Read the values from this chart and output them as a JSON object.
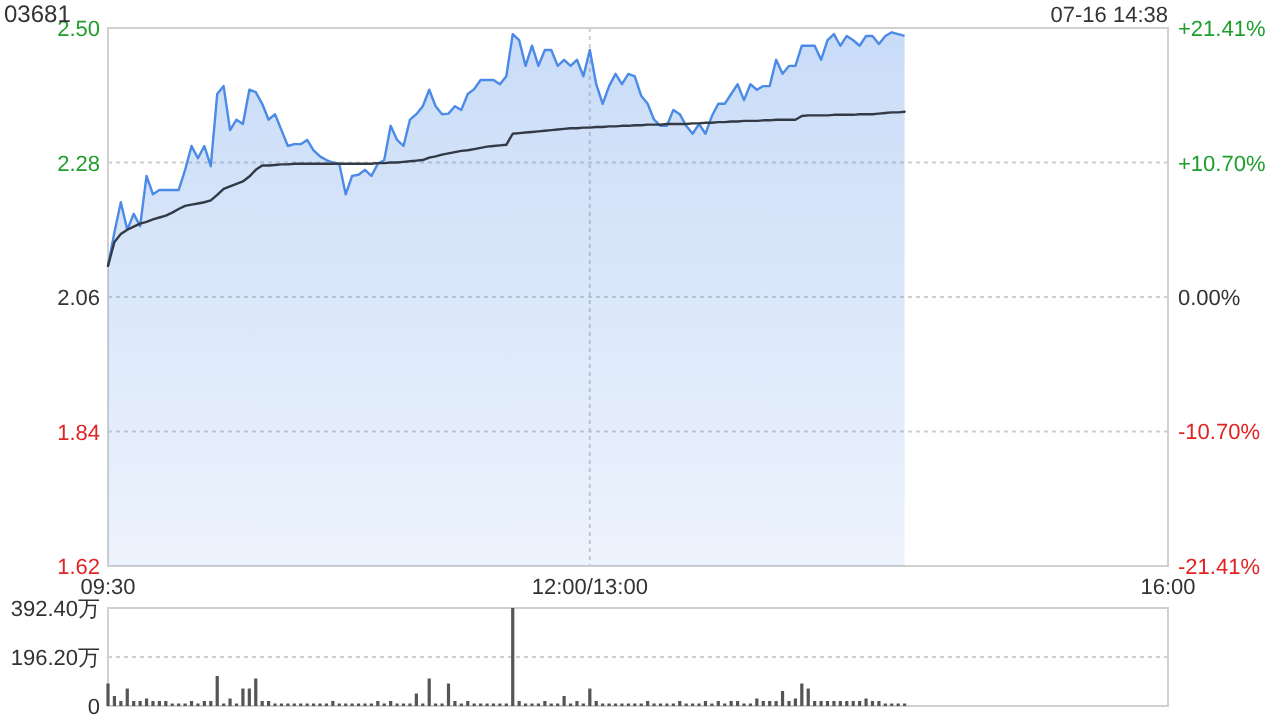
{
  "chart_data": [
    {
      "type": "area",
      "title": "03681",
      "annotations": [
        "07-16 14:38"
      ],
      "categories": [
        "09:30",
        null,
        null,
        null,
        null,
        null,
        null,
        null,
        null,
        null,
        null,
        null,
        null,
        null,
        null,
        null,
        null,
        null,
        null,
        null,
        null,
        null,
        null,
        null,
        null,
        null,
        null,
        null,
        null,
        null,
        null,
        null,
        null,
        null,
        null,
        null,
        null,
        null,
        null,
        null,
        null,
        null,
        null,
        null,
        null,
        null,
        null,
        null,
        null,
        null,
        null,
        null,
        null,
        null,
        null,
        null,
        null,
        null,
        null,
        null,
        null,
        null,
        null,
        null,
        null,
        null,
        null,
        null,
        null,
        null,
        null,
        null,
        null,
        null,
        null,
        "12:00/13:00",
        null,
        null,
        null,
        null,
        null,
        null,
        null,
        null,
        null,
        null,
        null,
        null,
        null,
        null,
        null,
        null,
        null,
        null,
        null,
        null,
        null,
        null,
        null,
        null,
        null,
        null,
        null,
        null,
        null,
        null,
        null,
        null,
        null,
        null,
        null,
        null,
        null,
        null,
        null,
        null,
        null,
        null,
        null,
        null,
        null,
        null,
        null,
        null,
        null,
        null,
        null,
        null,
        null,
        null,
        null,
        null,
        null,
        null,
        null,
        null,
        null,
        null,
        null,
        null,
        null,
        null,
        null,
        null,
        null,
        null,
        null,
        null,
        null,
        null,
        null,
        null,
        null,
        null,
        null,
        null,
        null,
        null,
        null,
        null,
        null,
        null,
        null,
        null,
        null,
        "16:00"
      ],
      "ylim": [
        1.62,
        2.5
      ],
      "yticks": [
        {
          "value": 2.5,
          "label": "2.50"
        },
        2.28,
        2.06,
        1.84,
        1.62
      ],
      "y2lim": [
        -21.41,
        21.41
      ],
      "y2ticks": [
        {
          "value": 21.41,
          "label": "+21.41%"
        },
        {
          "value": 10.7,
          "label": "+10.70%"
        },
        {
          "value": 0,
          "label": "0.00%"
        },
        {
          "value": -10.7,
          "label": "-10.70%"
        },
        {
          "value": -21.41,
          "label": "-21.41%"
        }
      ],
      "grid": true,
      "series": [
        {
          "color": "#4b8ae6",
          "values": [
            2.111,
            2.166,
            2.215,
            2.17,
            2.196,
            2.176,
            2.258,
            2.228,
            2.235,
            2.235,
            2.235,
            2.235,
            2.268,
            2.307,
            2.287,
            2.307,
            2.274,
            2.392,
            2.405,
            2.333,
            2.35,
            2.343,
            2.399,
            2.395,
            2.376,
            2.35,
            2.359,
            2.333,
            2.307,
            2.31,
            2.31,
            2.317,
            2.3,
            2.29,
            2.284,
            2.28,
            2.278,
            2.228,
            2.258,
            2.26,
            2.268,
            2.258,
            2.278,
            2.284,
            2.34,
            2.317,
            2.307,
            2.35,
            2.359,
            2.372,
            2.399,
            2.372,
            2.359,
            2.36,
            2.372,
            2.366,
            2.392,
            2.4,
            2.415,
            2.415,
            2.415,
            2.408,
            2.421,
            2.49,
            2.48,
            2.438,
            2.471,
            2.438,
            2.464,
            2.464,
            2.438,
            2.448,
            2.438,
            2.448,
            2.421,
            2.464,
            2.408,
            2.376,
            2.405,
            2.425,
            2.408,
            2.425,
            2.421,
            2.389,
            2.376,
            2.35,
            2.34,
            2.34,
            2.366,
            2.359,
            2.34,
            2.327,
            2.343,
            2.327,
            2.356,
            2.376,
            2.376,
            2.392,
            2.408,
            2.382,
            2.408,
            2.399,
            2.405,
            2.405,
            2.448,
            2.425,
            2.438,
            2.438,
            2.471,
            2.471,
            2.471,
            2.448,
            2.48,
            2.49,
            2.471,
            2.487,
            2.48,
            2.471,
            2.487,
            2.487,
            2.474,
            2.487,
            2.493,
            2.49,
            2.487,
            null,
            null,
            null,
            null,
            null,
            null,
            null,
            null,
            null,
            null,
            null,
            null,
            null,
            null,
            null,
            null,
            null,
            null,
            null,
            null,
            null,
            null,
            null,
            null,
            null,
            null,
            null,
            null,
            null,
            null,
            null,
            null,
            null,
            null,
            null,
            null,
            null,
            null,
            null,
            null,
            null
          ]
        },
        {
          "type": "line",
          "color": "#333a45",
          "values": [
            2.111,
            2.15,
            2.163,
            2.17,
            2.175,
            2.18,
            2.183,
            2.187,
            2.19,
            2.193,
            2.198,
            2.204,
            2.209,
            2.211,
            2.213,
            2.215,
            2.218,
            2.227,
            2.237,
            2.241,
            2.245,
            2.249,
            2.257,
            2.268,
            2.275,
            2.275,
            2.276,
            2.277,
            2.277,
            2.278,
            2.278,
            2.278,
            2.278,
            2.278,
            2.278,
            2.278,
            2.278,
            2.278,
            2.278,
            2.278,
            2.278,
            2.278,
            2.279,
            2.279,
            2.28,
            2.28,
            2.281,
            2.282,
            2.283,
            2.284,
            2.288,
            2.29,
            2.293,
            2.295,
            2.297,
            2.299,
            2.3,
            2.302,
            2.304,
            2.306,
            2.307,
            2.308,
            2.309,
            2.327,
            2.328,
            2.329,
            2.33,
            2.331,
            2.332,
            2.333,
            2.334,
            2.335,
            2.336,
            2.336,
            2.337,
            2.337,
            2.338,
            2.338,
            2.339,
            2.339,
            2.34,
            2.34,
            2.341,
            2.341,
            2.342,
            2.342,
            2.342,
            2.343,
            2.343,
            2.343,
            2.343,
            2.344,
            2.344,
            2.345,
            2.345,
            2.346,
            2.346,
            2.347,
            2.347,
            2.348,
            2.348,
            2.348,
            2.349,
            2.349,
            2.35,
            2.35,
            2.35,
            2.35,
            2.356,
            2.357,
            2.357,
            2.357,
            2.357,
            2.358,
            2.358,
            2.358,
            2.358,
            2.359,
            2.359,
            2.359,
            2.36,
            2.361,
            2.362,
            2.362,
            2.363,
            null,
            null,
            null,
            null,
            null,
            null,
            null,
            null,
            null,
            null,
            null,
            null,
            null,
            null,
            null,
            null,
            null,
            null,
            null,
            null,
            null,
            null,
            null,
            null,
            null,
            null,
            null,
            null,
            null,
            null,
            null,
            null,
            null,
            null,
            null,
            null,
            null,
            null,
            null,
            null,
            null
          ]
        }
      ]
    },
    {
      "type": "bar",
      "tick_labels": "y",
      "color": "#555555",
      "categories": [
        null,
        null,
        null,
        null,
        null,
        null,
        null,
        null,
        null,
        null,
        null,
        null,
        null,
        null,
        null,
        null,
        null,
        null,
        null,
        null,
        null,
        null,
        null,
        null,
        null,
        null,
        null,
        null,
        null,
        null,
        null,
        null,
        null,
        null,
        null,
        null,
        null,
        null,
        null,
        null,
        null,
        null,
        null,
        null,
        null,
        null,
        null,
        null,
        null,
        null,
        null,
        null,
        null,
        null,
        null,
        null,
        null,
        null,
        null,
        null,
        null,
        null,
        null,
        null,
        null,
        null,
        null,
        null,
        null,
        null,
        null,
        null,
        null,
        null,
        null,
        null,
        null,
        null,
        null,
        null,
        null,
        null,
        null,
        null,
        null,
        null,
        null,
        null,
        null,
        null,
        null,
        null,
        null,
        null,
        null,
        null,
        null,
        null,
        null,
        null,
        null,
        null,
        null,
        null,
        null,
        null,
        null,
        null,
        null,
        null,
        null,
        null,
        null,
        null,
        null,
        null,
        null,
        null,
        null,
        null,
        null,
        null,
        null,
        null,
        null,
        null,
        null,
        null,
        null,
        null,
        null,
        null,
        null,
        null,
        null,
        null,
        null,
        null,
        null,
        null,
        null,
        null,
        null,
        null,
        null,
        null,
        null,
        null,
        null,
        null,
        null,
        null,
        null,
        null,
        null,
        null,
        null,
        null,
        null,
        null,
        null,
        null,
        null,
        null,
        null,
        null
      ],
      "ylim": [
        0,
        392.4
      ],
      "yticks": [
        {
          "value": 392.4,
          "label": "392.40万"
        },
        {
          "value": 196.2,
          "label": "196.20万"
        },
        0
      ],
      "grid": "y",
      "values": [
        90,
        40,
        20,
        70,
        20,
        20,
        30,
        20,
        20,
        20,
        10,
        10,
        10,
        20,
        10,
        20,
        20,
        120,
        10,
        30,
        10,
        70,
        70,
        110,
        20,
        20,
        10,
        10,
        10,
        10,
        10,
        10,
        10,
        10,
        10,
        20,
        10,
        10,
        10,
        10,
        10,
        10,
        20,
        10,
        20,
        10,
        10,
        10,
        50,
        10,
        110,
        10,
        10,
        90,
        20,
        10,
        20,
        10,
        10,
        10,
        10,
        10,
        10,
        392.4,
        20,
        10,
        10,
        10,
        20,
        10,
        10,
        40,
        10,
        20,
        10,
        70,
        20,
        10,
        10,
        10,
        10,
        10,
        10,
        10,
        20,
        10,
        10,
        10,
        10,
        20,
        10,
        10,
        10,
        20,
        10,
        20,
        10,
        20,
        20,
        10,
        10,
        30,
        20,
        20,
        20,
        60,
        20,
        30,
        90,
        70,
        20,
        20,
        20,
        20,
        20,
        20,
        20,
        20,
        30,
        20,
        20,
        10,
        10,
        10,
        10,
        null,
        null,
        null,
        null,
        null,
        null,
        null,
        null,
        null,
        null,
        null,
        null,
        null,
        null,
        null,
        null,
        null,
        null,
        null,
        null,
        null,
        null,
        null,
        null,
        null,
        null,
        null,
        null,
        null,
        null,
        null,
        null,
        null,
        null,
        null,
        null,
        null,
        null,
        null,
        null,
        null
      ]
    }
  ]
}
